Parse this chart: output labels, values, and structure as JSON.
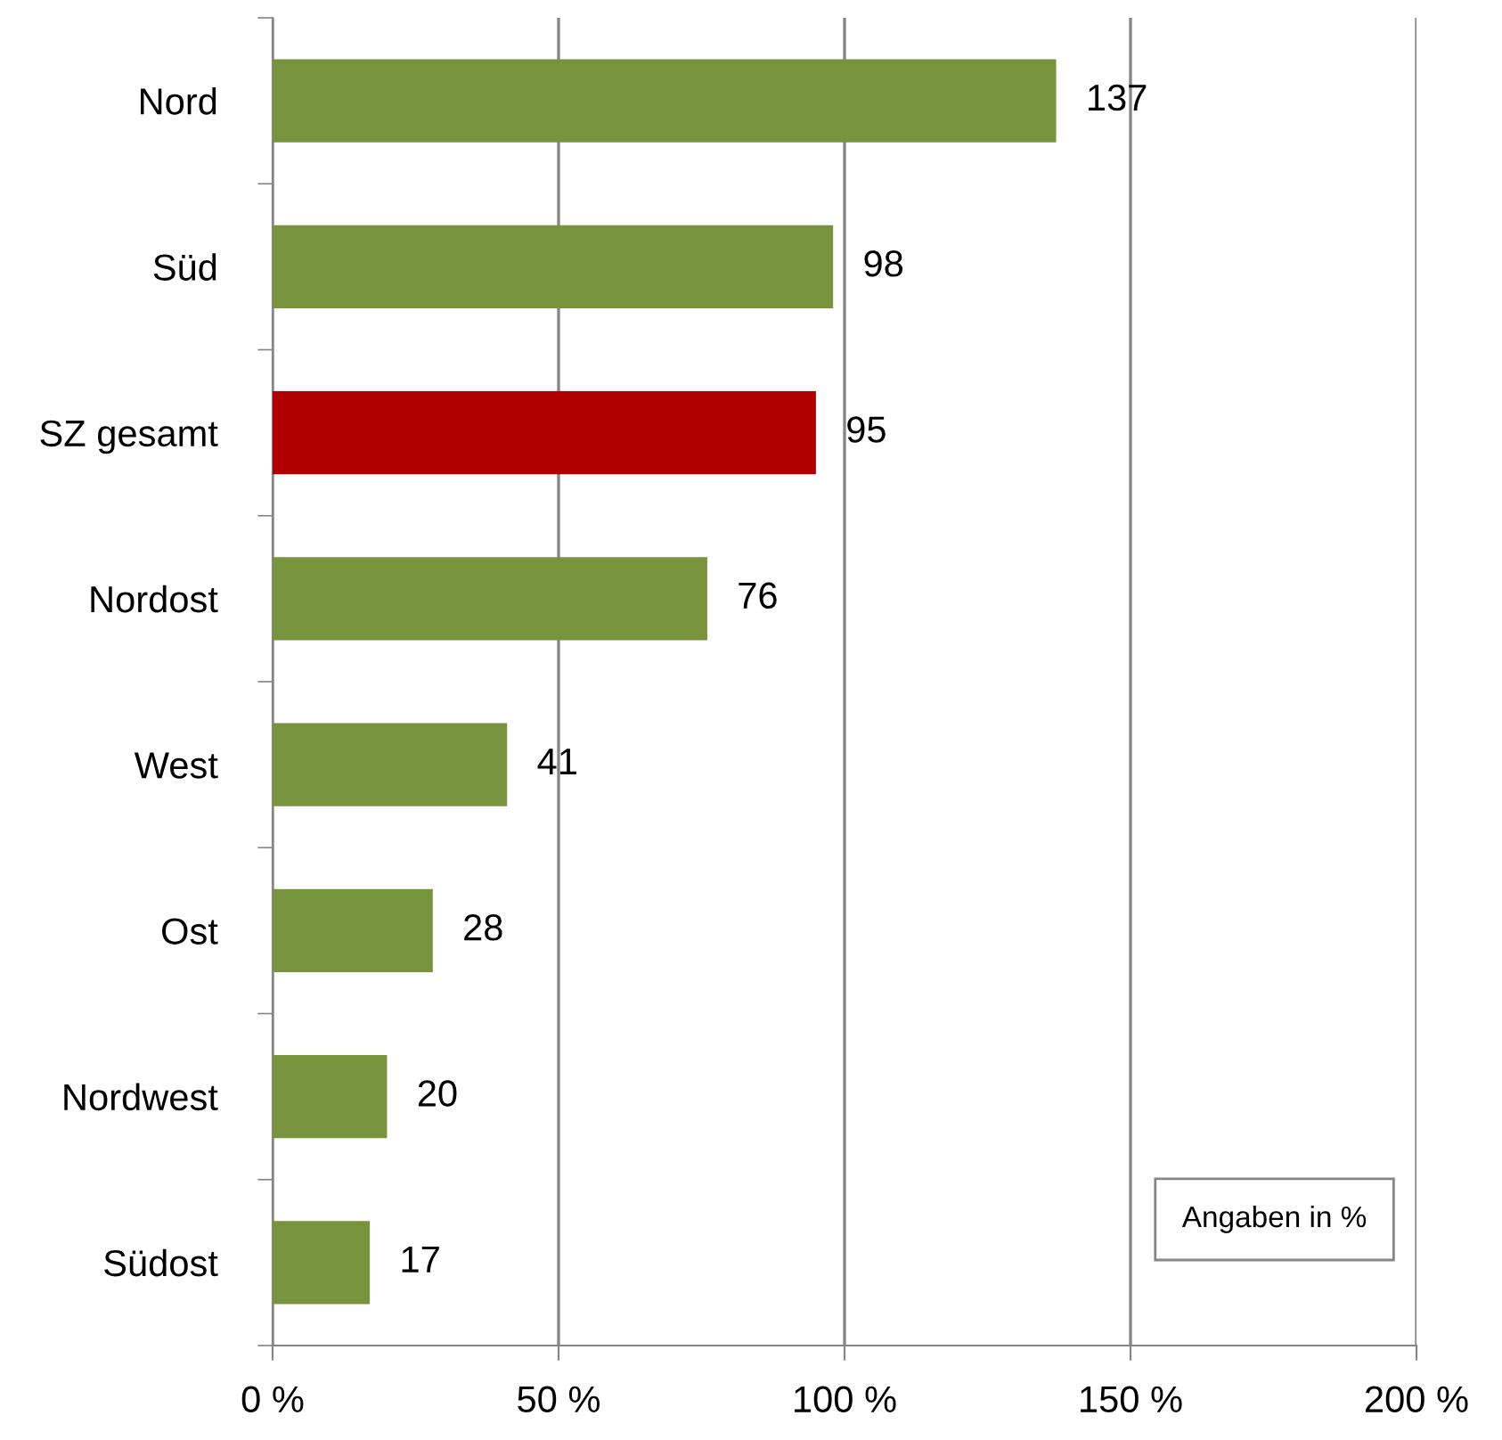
{
  "chart_data": {
    "type": "bar",
    "orientation": "horizontal",
    "categories": [
      "Nord",
      "Süd",
      "SZ gesamt",
      "Nordost",
      "West",
      "Ost",
      "Nordwest",
      "Südost"
    ],
    "values": [
      137,
      98,
      95,
      76,
      41,
      28,
      20,
      17
    ],
    "colors": [
      "#77933c",
      "#77933c",
      "#b10000",
      "#77933c",
      "#77933c",
      "#77933c",
      "#77933c",
      "#77933c"
    ],
    "xlim": [
      0,
      200
    ],
    "xticks": [
      {
        "value": 0,
        "label": "0 %"
      },
      {
        "value": 50,
        "label": "50 %"
      },
      {
        "value": 100,
        "label": "100 %"
      },
      {
        "value": 150,
        "label": "150 %"
      },
      {
        "value": 200,
        "label": "200 %"
      }
    ],
    "grid": "x",
    "data_labels": true,
    "legend": false,
    "annotations": [
      "Angaben in %"
    ]
  }
}
